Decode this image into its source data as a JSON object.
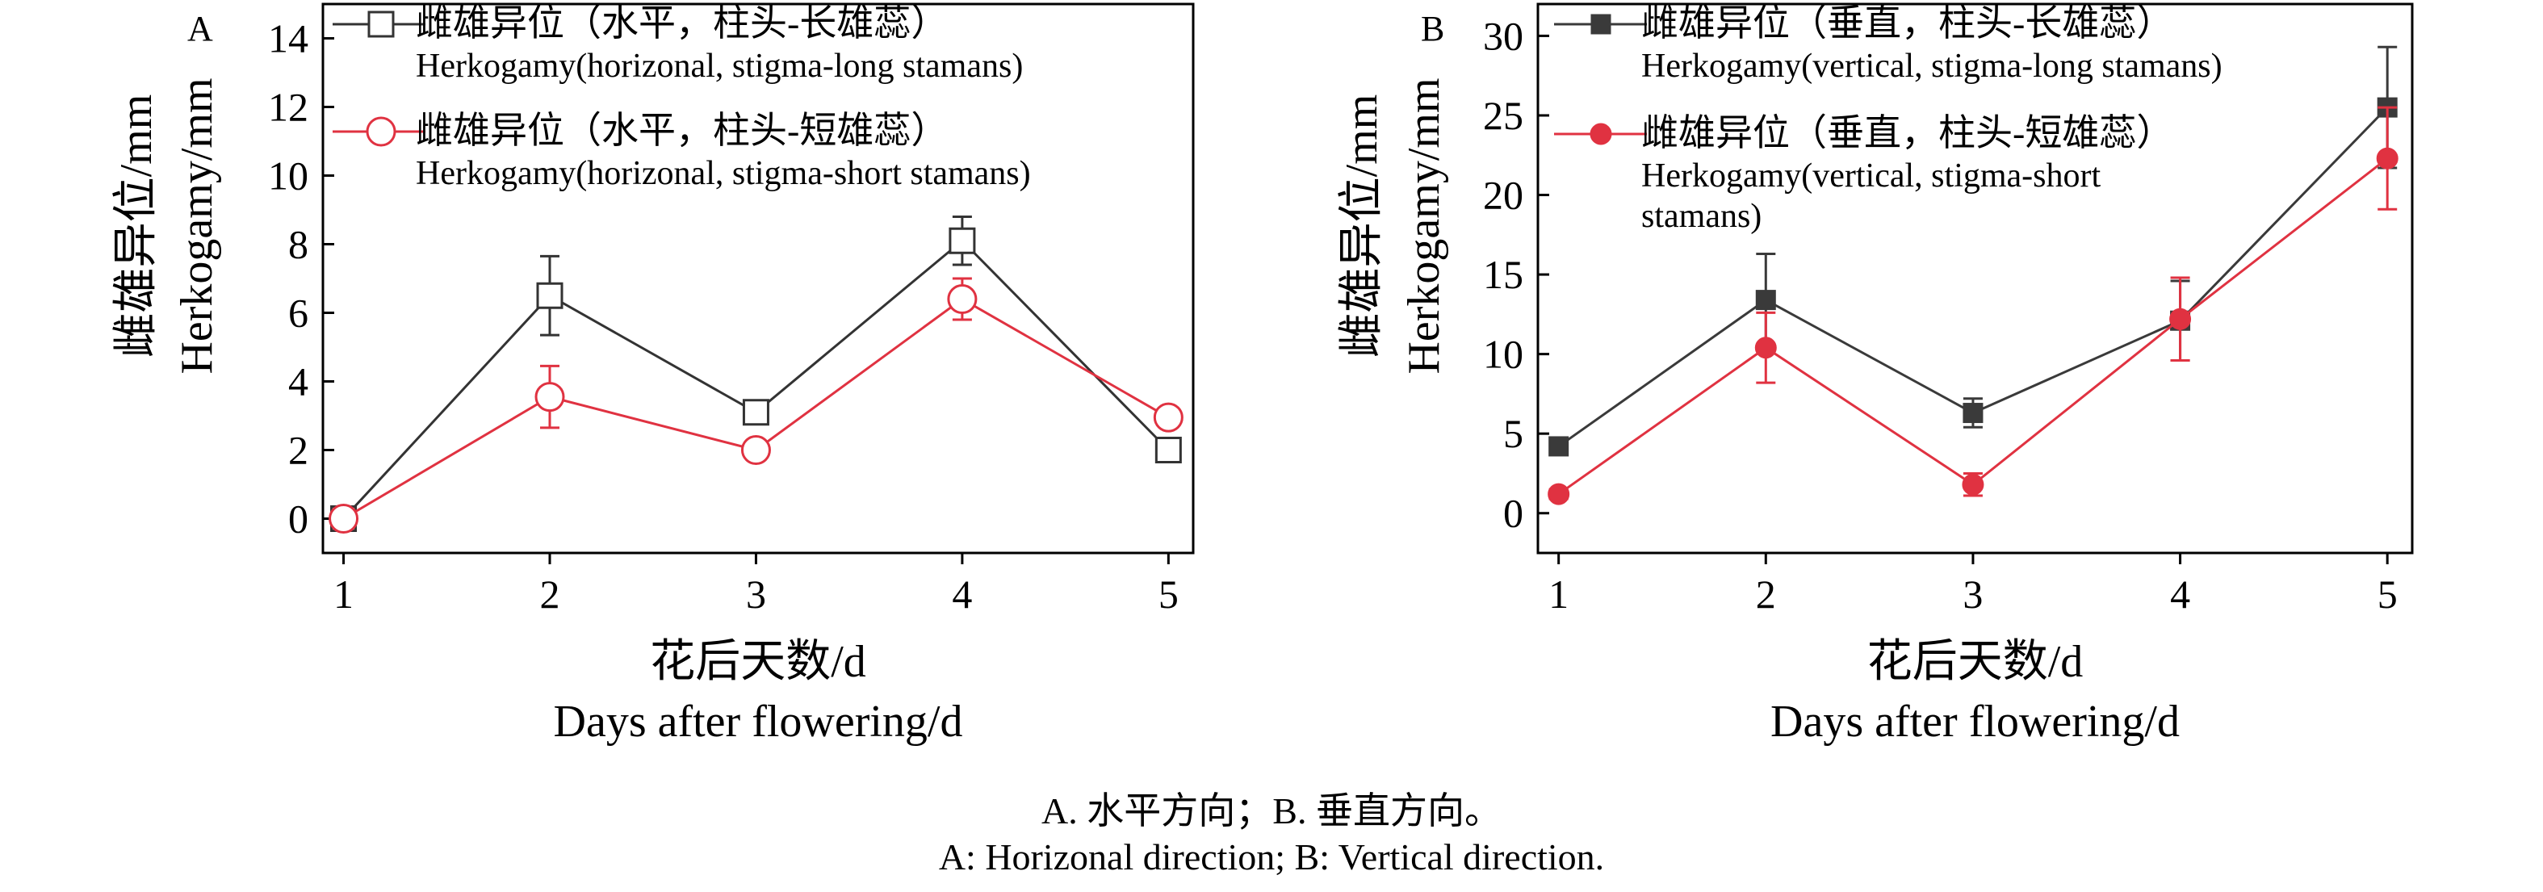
{
  "chart_data": [
    {
      "type": "line",
      "panel_label": "A",
      "title": "",
      "ylabel_cn": "雌雄异位/mm",
      "ylabel_en": "Herkogamy/mm",
      "xlabel_cn": "花后天数/d",
      "xlabel_en": "Days after flowering/d",
      "x": [
        1,
        2,
        3,
        4,
        5
      ],
      "ylim": [
        -1,
        15
      ],
      "yticks": [
        0,
        2,
        4,
        6,
        8,
        10,
        12,
        14
      ],
      "legend_position": "top-left",
      "series": [
        {
          "name_cn": "雌雄异位（水平，柱头-长雄蕊）",
          "name_en": "Herkogamy(horizonal, stigma-long stamans)",
          "color": "#333333",
          "marker": "open-square",
          "values": [
            0.0,
            6.5,
            3.1,
            8.1,
            2.0
          ],
          "errors": [
            0.0,
            1.15,
            0.3,
            0.7,
            0.25
          ]
        },
        {
          "name_cn": "雌雄异位（水平，柱头-短雄蕊）",
          "name_en": "Herkogamy(horizonal, stigma-short stamans)",
          "color": "#e03241",
          "marker": "open-circle",
          "values": [
            0.0,
            3.55,
            2.0,
            6.4,
            2.95
          ],
          "errors": [
            0.0,
            0.9,
            0.3,
            0.6,
            0.2
          ]
        }
      ]
    },
    {
      "type": "line",
      "panel_label": "B",
      "title": "",
      "ylabel_cn": "雌雄异位/mm",
      "ylabel_en": "Herkogamy/mm",
      "xlabel_cn": "花后天数/d",
      "xlabel_en": "Days after flowering/d",
      "x": [
        1,
        2,
        3,
        4,
        5
      ],
      "ylim": [
        -2.5,
        32
      ],
      "yticks": [
        0,
        5,
        10,
        15,
        20,
        25,
        30
      ],
      "legend_position": "top-left",
      "series": [
        {
          "name_cn": "雌雄异位（垂直，柱头-长雄蕊）",
          "name_en": "Herkogamy(vertical, stigma-long stamans)",
          "color": "#3a3a3a",
          "marker": "filled-square",
          "values": [
            4.2,
            13.4,
            6.3,
            12.1,
            25.5
          ],
          "errors": [
            0.3,
            2.9,
            0.9,
            2.5,
            3.8
          ]
        },
        {
          "name_cn": "雌雄异位（垂直，柱头-短雄蕊）",
          "name_en": "Herkogamy(vertical, stigma-short stamans)",
          "color": "#e03241",
          "marker": "filled-circle",
          "values": [
            1.2,
            10.4,
            1.8,
            12.2,
            22.3
          ],
          "errors": [
            0.3,
            2.2,
            0.7,
            2.6,
            3.2
          ]
        }
      ]
    }
  ],
  "caption": {
    "cn": "A. 水平方向；B. 垂直方向。",
    "en": "A: Horizonal direction; B: Vertical direction."
  }
}
